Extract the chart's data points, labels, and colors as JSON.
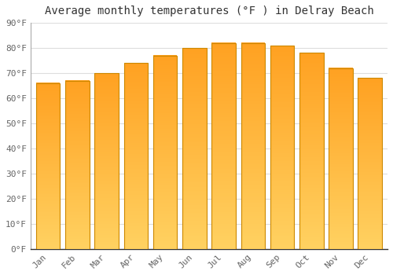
{
  "months": [
    "Jan",
    "Feb",
    "Mar",
    "Apr",
    "May",
    "Jun",
    "Jul",
    "Aug",
    "Sep",
    "Oct",
    "Nov",
    "Dec"
  ],
  "values": [
    66,
    67,
    70,
    74,
    77,
    80,
    82,
    82,
    81,
    78,
    72,
    68
  ],
  "bar_color_top": "#FFA020",
  "bar_color_bottom": "#FFD060",
  "bar_border_color": "#CC8800",
  "title": "Average monthly temperatures (°F ) in Delray Beach",
  "ylim": [
    0,
    90
  ],
  "yticks": [
    0,
    10,
    20,
    30,
    40,
    50,
    60,
    70,
    80,
    90
  ],
  "ytick_labels": [
    "0°F",
    "10°F",
    "20°F",
    "30°F",
    "40°F",
    "50°F",
    "60°F",
    "70°F",
    "80°F",
    "90°F"
  ],
  "background_color": "#FFFFFF",
  "grid_color": "#DDDDDD",
  "title_fontsize": 10,
  "tick_fontsize": 8,
  "tick_color": "#666666"
}
